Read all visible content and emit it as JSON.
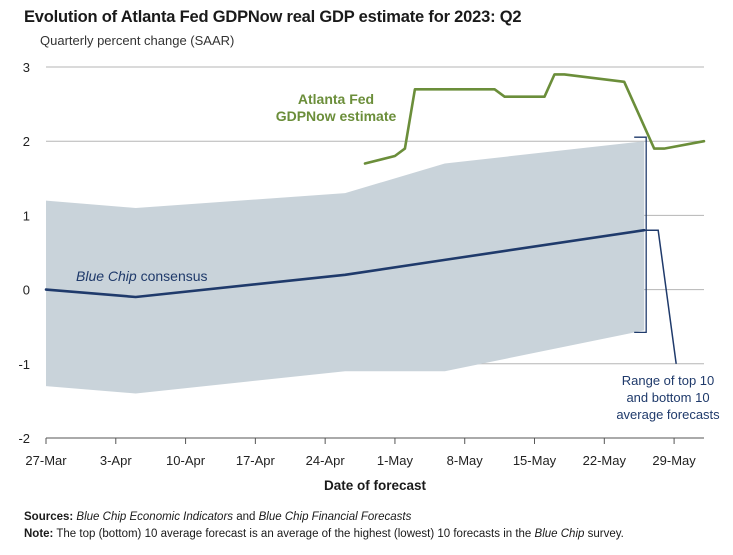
{
  "header": {
    "title": "Evolution of Atlanta Fed GDPNow real GDP estimate for 2023: Q2",
    "subtitle": "Quarterly percent change (SAAR)"
  },
  "footer": {
    "sources_label": "Sources:",
    "sources_src1": "Blue Chip Economic Indicators",
    "sources_and": " and ",
    "sources_src2": "Blue Chip Financial Forecasts",
    "note_label": "Note:",
    "note_text_1": " The top (bottom) 10 average forecast is an average of the highest (lowest) 10 forecasts in the ",
    "note_src": "Blue Chip",
    "note_text_2": " survey."
  },
  "chart_data": {
    "type": "line",
    "xlabel": "Date of forecast",
    "ylabel": "",
    "ylim": [
      -2,
      3
    ],
    "yticks": [
      -2,
      -1,
      0,
      1,
      2,
      3
    ],
    "xlim": [
      "2023-03-27",
      "2023-06-01"
    ],
    "xticks": [
      {
        "date": "2023-03-27",
        "label": "27-Mar"
      },
      {
        "date": "2023-04-03",
        "label": "3-Apr"
      },
      {
        "date": "2023-04-10",
        "label": "10-Apr"
      },
      {
        "date": "2023-04-17",
        "label": "17-Apr"
      },
      {
        "date": "2023-04-24",
        "label": "24-Apr"
      },
      {
        "date": "2023-05-01",
        "label": "1-May"
      },
      {
        "date": "2023-05-08",
        "label": "8-May"
      },
      {
        "date": "2023-05-15",
        "label": "15-May"
      },
      {
        "date": "2023-05-22",
        "label": "22-May"
      },
      {
        "date": "2023-05-29",
        "label": "29-May"
      }
    ],
    "grid": true,
    "range_band": {
      "name": "Range of top 10 and bottom 10 average forecasts",
      "color": "#c9d3da",
      "x": [
        "2023-03-27",
        "2023-04-05",
        "2023-04-26",
        "2023-05-06",
        "2023-05-26"
      ],
      "upper": [
        1.2,
        1.1,
        1.3,
        1.7,
        2.0
      ],
      "lower": [
        -1.3,
        -1.4,
        -1.1,
        -1.1,
        -0.55
      ]
    },
    "series": [
      {
        "name": "Blue Chip consensus",
        "color": "#1f3a6b",
        "x": [
          "2023-03-27",
          "2023-04-05",
          "2023-04-26",
          "2023-05-06",
          "2023-05-26"
        ],
        "values": [
          0.0,
          -0.1,
          0.2,
          0.4,
          0.8
        ]
      },
      {
        "name": "Atlanta Fed GDPNow estimate",
        "color": "#6b8e3a",
        "x": [
          "2023-04-28",
          "2023-05-01",
          "2023-05-02",
          "2023-05-03",
          "2023-05-04",
          "2023-05-11",
          "2023-05-12",
          "2023-05-16",
          "2023-05-17",
          "2023-05-18",
          "2023-05-24",
          "2023-05-27",
          "2023-05-28",
          "2023-06-01"
        ],
        "values": [
          1.7,
          1.8,
          1.9,
          2.7,
          2.7,
          2.7,
          2.6,
          2.6,
          2.9,
          2.9,
          2.8,
          1.9,
          1.9,
          2.0
        ]
      }
    ],
    "annotations": {
      "gdpnow_line1": "Atlanta Fed",
      "gdpnow_line2": "GDPNow estimate",
      "consensus_label": "Blue Chip",
      "consensus_label_rest": " consensus",
      "range_line1": "Range of top 10",
      "range_line2": "and bottom 10",
      "range_line3": "average forecasts"
    }
  }
}
